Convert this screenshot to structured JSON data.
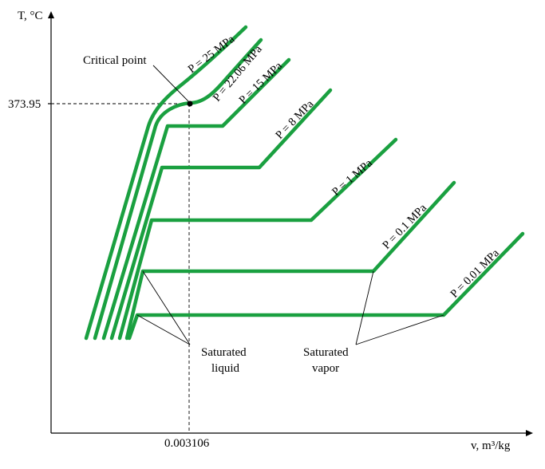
{
  "diagram": {
    "y_axis_label": "T, °C",
    "x_axis_label": "v, m³/kg",
    "critical_temperature_tick": "373.95",
    "critical_volume_tick": "0.003106",
    "critical_point_label": "Critical point",
    "saturated_liquid_label": [
      "Saturated",
      "liquid"
    ],
    "saturated_vapor_label": [
      "Saturated",
      "vapor"
    ],
    "isobar_color": "#1aa040",
    "isobars": [
      {
        "label": "P = 25 MPa"
      },
      {
        "label": "P = 22.06 MPa"
      },
      {
        "label": "P = 15 MPa"
      },
      {
        "label": "P = 8 MPa"
      },
      {
        "label": "P = 1 MPa"
      },
      {
        "label": "P = 0.1 MPa"
      },
      {
        "label": "P = 0.01 MPa"
      }
    ]
  }
}
